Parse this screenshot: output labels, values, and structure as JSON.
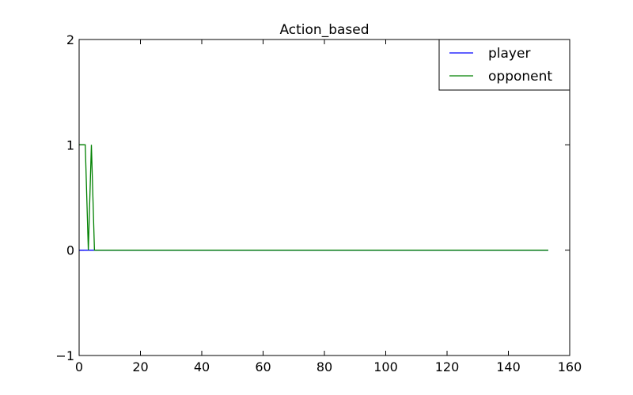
{
  "chart_data": {
    "type": "line",
    "title": "Action_based",
    "xlabel": "",
    "ylabel": "",
    "xlim": [
      0,
      160
    ],
    "ylim": [
      -1,
      2
    ],
    "xticks": [
      0,
      20,
      40,
      60,
      80,
      100,
      120,
      140,
      160
    ],
    "xtick_labels": [
      "0",
      "20",
      "40",
      "60",
      "80",
      "100",
      "120",
      "140",
      "160"
    ],
    "yticks": [
      -1,
      0,
      1,
      2
    ],
    "ytick_labels": [
      "−1",
      "0",
      "1",
      "2"
    ],
    "grid": false,
    "legend_position": "top-right",
    "series": [
      {
        "name": "player",
        "color": "#0000ff",
        "x": [
          0,
          1,
          2,
          3,
          4,
          5,
          6,
          7,
          8,
          9,
          10,
          20,
          40,
          60,
          80,
          100,
          120,
          140,
          153
        ],
        "y": [
          0,
          0,
          0,
          0,
          0,
          0,
          0,
          0,
          0,
          0,
          0,
          0,
          0,
          0,
          0,
          0,
          0,
          0,
          0
        ]
      },
      {
        "name": "opponent",
        "color": "#008000",
        "x": [
          0,
          1,
          2,
          3,
          4,
          5,
          6,
          7,
          8,
          9,
          10,
          20,
          40,
          60,
          80,
          100,
          120,
          140,
          153
        ],
        "y": [
          1,
          1,
          1,
          0,
          1,
          0,
          0,
          0,
          0,
          0,
          0,
          0,
          0,
          0,
          0,
          0,
          0,
          0,
          0
        ]
      }
    ]
  }
}
